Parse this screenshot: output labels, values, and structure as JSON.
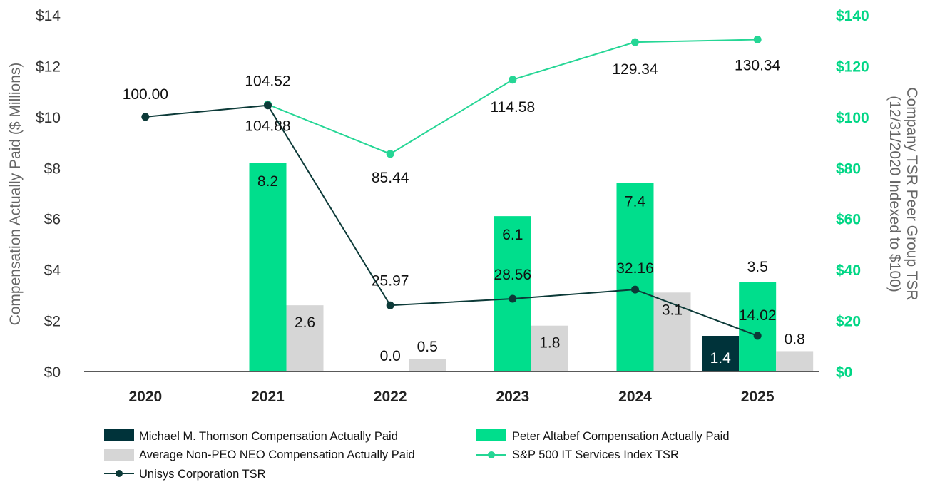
{
  "chart_data": {
    "type": "bar",
    "categories": [
      "2020",
      "2021",
      "2022",
      "2023",
      "2024",
      "2025"
    ],
    "left_axis": {
      "title": "Compensation Actually Paid ($ Millions)",
      "ylim": [
        0,
        14
      ],
      "ticks": [
        0,
        2,
        4,
        6,
        8,
        10,
        12,
        14
      ],
      "tick_labels": [
        "$0",
        "$2",
        "$4",
        "$6",
        "$8",
        "$10",
        "$12",
        "$14"
      ]
    },
    "right_axis": {
      "title_line1": "Company TSR Peer Group TSR",
      "title_line2": "(12/31/2020 Indexed to $100)",
      "ylim": [
        0,
        140
      ],
      "ticks": [
        0,
        20,
        40,
        60,
        80,
        100,
        120,
        140
      ],
      "tick_labels": [
        "$0",
        "$20",
        "$40",
        "$60",
        "$80",
        "$100",
        "$120",
        "$140"
      ],
      "color": "#00d685"
    },
    "bar_series": [
      {
        "name": "Michael M. Thomson Compensation Actually Paid",
        "color": "#00333a",
        "values": [
          null,
          null,
          null,
          null,
          null,
          1.4
        ],
        "labels": [
          null,
          null,
          null,
          null,
          null,
          "1.4"
        ]
      },
      {
        "name": "Peter Altabef Compensation Actually Paid",
        "color": "#00de8c",
        "values": [
          null,
          8.2,
          0.0,
          6.1,
          7.4,
          3.5
        ],
        "labels": [
          null,
          "8.2",
          "0.0",
          "6.1",
          "7.4",
          "3.5"
        ]
      },
      {
        "name": "Average Non-PEO NEO Compensation Actually Paid",
        "color": "#d6d6d6",
        "values": [
          null,
          2.6,
          0.5,
          1.8,
          3.1,
          0.8
        ],
        "labels": [
          null,
          "2.6",
          "0.5",
          "1.8",
          "3.1",
          "0.8"
        ]
      }
    ],
    "line_series": [
      {
        "name": "S&P 500 IT Services Index TSR",
        "color": "#25d695",
        "values": [
          null,
          104.88,
          85.44,
          114.58,
          129.34,
          130.34
        ],
        "labels": [
          null,
          "104.88",
          "85.44",
          "114.58",
          "129.34",
          "130.34"
        ]
      },
      {
        "name": "Unisys Corporation TSR",
        "color": "#0c3a38",
        "values": [
          100.0,
          104.52,
          25.97,
          28.56,
          32.16,
          14.02
        ],
        "labels": [
          "100.00",
          "104.52",
          "25.97",
          "28.56",
          "32.16",
          "14.02"
        ]
      }
    ],
    "legend": {
      "placement": "bottom",
      "items": [
        "Michael M. Thomson Compensation Actually Paid",
        "Peter Altabef Compensation Actually Paid",
        "Average Non-PEO NEO Compensation Actually Paid",
        "S&P 500 IT Services Index TSR",
        "Unisys Corporation TSR"
      ]
    },
    "grid": false
  }
}
